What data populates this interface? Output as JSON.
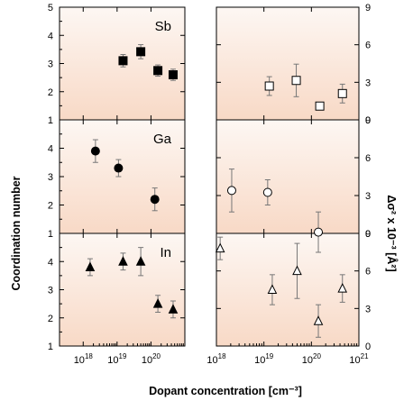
{
  "chart_data": {
    "type": "scatter",
    "x_scale": "log",
    "xlabel": "Dopant concentration [cm⁻³]",
    "ylabel_left": "Coordination number",
    "ylabel_right": "Δσ² x 10⁻³ [Å²]",
    "x_ticks": [
      {
        "value": 1e+18,
        "base": "10",
        "exp": "18"
      },
      {
        "value": 1e+19,
        "base": "10",
        "exp": "19"
      },
      {
        "value": 1e+20,
        "base": "10",
        "exp": "20"
      },
      {
        "value": 1e+21,
        "base": "10",
        "exp": "21"
      }
    ],
    "left_ylim": [
      1,
      5
    ],
    "left_yticks": [
      "1",
      "2",
      "3",
      "4",
      "5"
    ],
    "right_ylim": [
      0,
      9
    ],
    "right_yticks": [
      "0",
      "3",
      "6",
      "9"
    ],
    "panels": [
      {
        "label": "Sb",
        "left_marker": "filled-square",
        "right_marker": "open-square",
        "coordination": [
          {
            "x": 1.5e+19,
            "y": 3.1,
            "err": 0.22
          },
          {
            "x": 5e+19,
            "y": 3.42,
            "err": 0.25
          },
          {
            "x": 1.6e+20,
            "y": 2.75,
            "err": 0.2
          },
          {
            "x": 4.5e+20,
            "y": 2.6,
            "err": 0.2
          }
        ],
        "disorder": [
          {
            "x": 1.3e+19,
            "y": 2.7,
            "err": 0.75
          },
          {
            "x": 4.8e+19,
            "y": 3.15,
            "err": 1.3
          },
          {
            "x": 1.5e+20,
            "y": 1.1,
            "err": 0.3
          },
          {
            "x": 4.5e+20,
            "y": 2.1,
            "err": 0.75
          }
        ]
      },
      {
        "label": "Ga",
        "left_marker": "filled-circle",
        "right_marker": "open-circle",
        "coordination": [
          {
            "x": 2.3e+18,
            "y": 3.9,
            "err": 0.4
          },
          {
            "x": 1.1e+19,
            "y": 3.3,
            "err": 0.3
          },
          {
            "x": 1.3e+20,
            "y": 2.2,
            "err": 0.4
          }
        ],
        "disorder": [
          {
            "x": 2.1e+18,
            "y": 3.4,
            "err": 1.7
          },
          {
            "x": 1.2e+19,
            "y": 3.25,
            "err": 1.0
          },
          {
            "x": 1.4e+20,
            "y": 0.1,
            "err": 1.6
          }
        ]
      },
      {
        "label": "In",
        "left_marker": "filled-triangle",
        "right_marker": "open-triangle",
        "coordination": [
          {
            "x": 1.6e+18,
            "y": 3.8,
            "err": 0.3
          },
          {
            "x": 1.5e+19,
            "y": 4.0,
            "err": 0.3
          },
          {
            "x": 5e+19,
            "y": 4.0,
            "err": 0.5
          },
          {
            "x": 1.6e+20,
            "y": 2.5,
            "err": 0.3
          },
          {
            "x": 4.5e+20,
            "y": 2.3,
            "err": 0.3
          }
        ],
        "disorder": [
          {
            "x": 1.2e+18,
            "y": 7.8,
            "err": 0.9
          },
          {
            "x": 1.5e+19,
            "y": 4.5,
            "err": 1.2
          },
          {
            "x": 5e+19,
            "y": 6.0,
            "err": 2.2
          },
          {
            "x": 1.4e+20,
            "y": 2.0,
            "err": 1.3
          },
          {
            "x": 4.5e+20,
            "y": 4.6,
            "err": 1.1
          }
        ]
      }
    ]
  }
}
